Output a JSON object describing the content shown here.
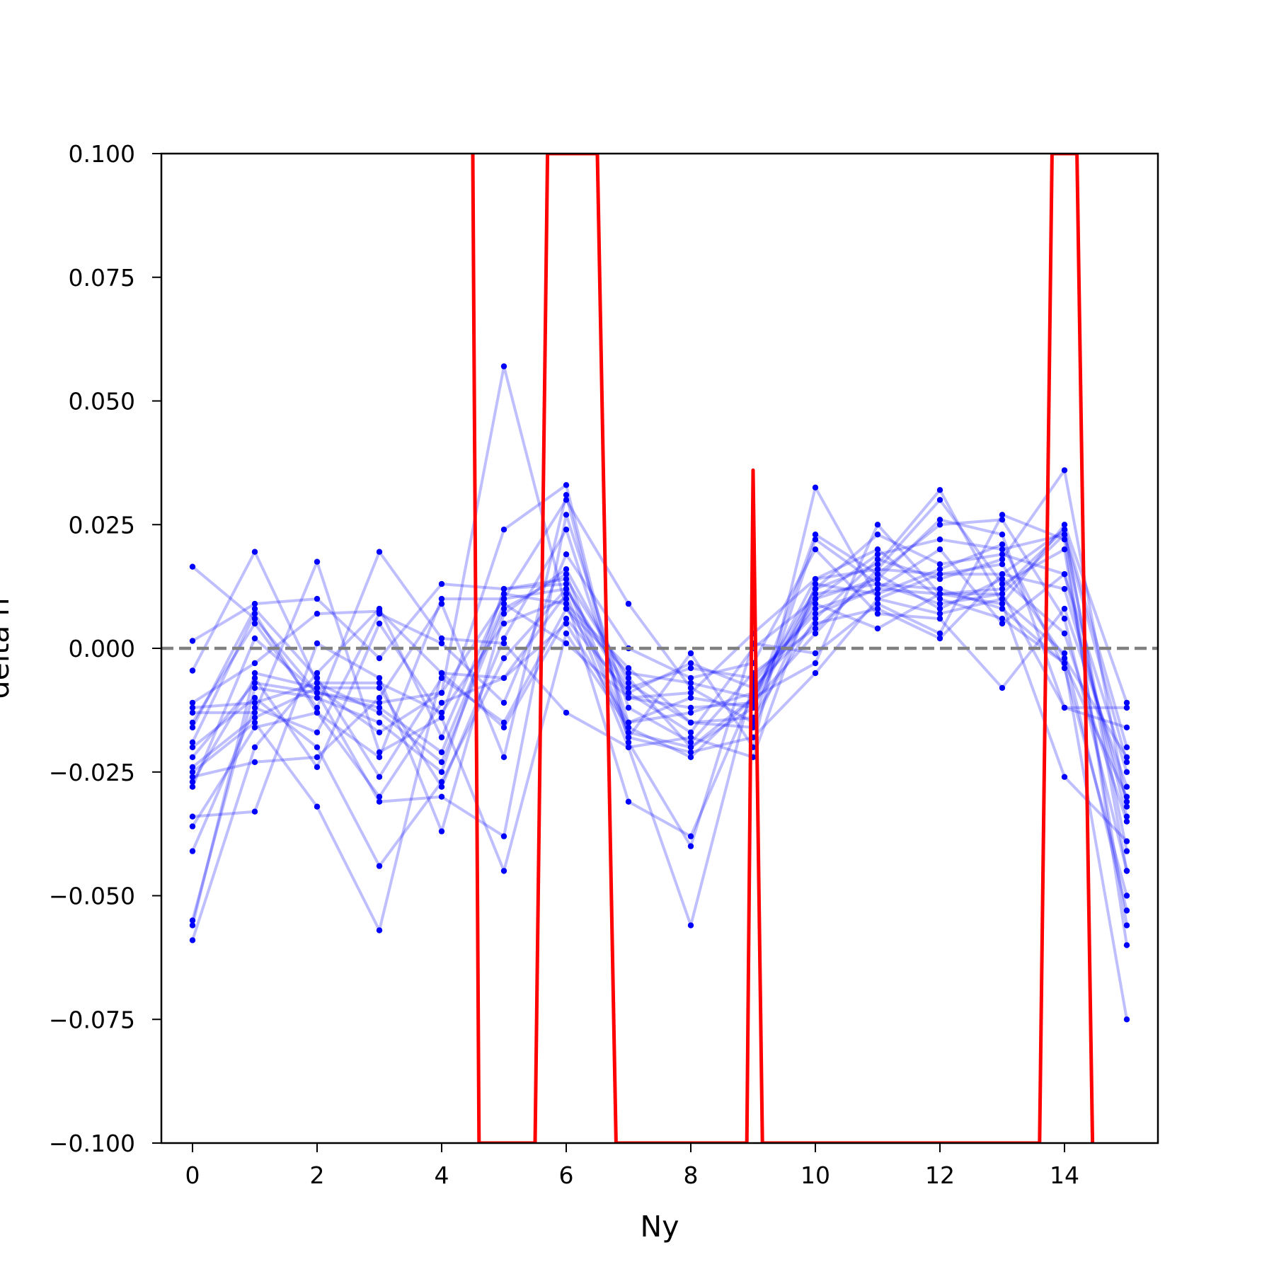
{
  "chart_data": {
    "type": "line",
    "title": "",
    "xlabel": "Ny",
    "ylabel": "delta n",
    "xlim": [
      -0.5,
      15.5
    ],
    "ylim": [
      -0.1,
      0.1
    ],
    "xticks": [
      0,
      2,
      4,
      6,
      8,
      10,
      12,
      14
    ],
    "xtick_labels": [
      "0",
      "2",
      "4",
      "6",
      "8",
      "10",
      "12",
      "14"
    ],
    "yticks": [
      -0.1,
      -0.075,
      -0.05,
      -0.025,
      0.0,
      0.025,
      0.05,
      0.075,
      0.1
    ],
    "ytick_labels": [
      "−0.100",
      "−0.075",
      "−0.050",
      "−0.025",
      "0.000",
      "0.025",
      "0.050",
      "0.075",
      "0.100"
    ],
    "grid": false,
    "reference_line": {
      "y": 0.0,
      "style": "dashed",
      "color": "#808080"
    },
    "colors": {
      "series": "#0000ff",
      "mean": "#ff0000",
      "reference": "#808080"
    },
    "x": [
      0,
      1,
      2,
      3,
      4,
      5,
      6,
      7,
      8,
      9,
      10,
      11,
      12,
      13,
      14,
      15
    ],
    "series": [
      {
        "values": [
          0.0165,
          0.006,
          -0.009,
          -0.011,
          -0.009,
          0.01,
          0.03,
          0.009,
          -0.008,
          -0.015,
          0.022,
          0.013,
          0.009,
          0.011,
          0.023,
          -0.023
        ]
      },
      {
        "values": [
          0.0015,
          0.009,
          0.01,
          -0.002,
          0.013,
          0.012,
          0.014,
          -0.006,
          -0.02,
          -0.01,
          0.014,
          0.02,
          0.01,
          0.006,
          -0.003,
          -0.03
        ]
      },
      {
        "values": [
          -0.0045,
          0.0195,
          -0.007,
          -0.007,
          -0.013,
          0.005,
          0.01,
          -0.031,
          -0.038,
          -0.009,
          0.012,
          0.017,
          0.032,
          0.009,
          0.025,
          -0.011
        ]
      },
      {
        "values": [
          -0.011,
          -0.003,
          0.007,
          0.0075,
          -0.005,
          -0.006,
          0.005,
          -0.015,
          -0.01,
          -0.012,
          0.023,
          0.015,
          0.025,
          0.026,
          0.006,
          -0.045
        ]
      },
      {
        "values": [
          -0.013,
          -0.013,
          0.0175,
          -0.021,
          -0.014,
          0.024,
          0.033,
          -0.018,
          -0.001,
          -0.02,
          0.0325,
          0.01,
          0.015,
          0.017,
          -0.002,
          -0.022
        ]
      },
      {
        "values": [
          -0.015,
          0.005,
          -0.012,
          0.0195,
          0.002,
          0.001,
          -0.013,
          -0.02,
          -0.056,
          -0.007,
          0.008,
          0.012,
          0.02,
          0.005,
          0.015,
          -0.025
        ]
      },
      {
        "values": [
          -0.016,
          0.008,
          -0.006,
          -0.026,
          -0.006,
          -0.015,
          0.008,
          -0.005,
          -0.007,
          -0.01,
          -0.003,
          0.025,
          0.011,
          0.011,
          -0.012,
          -0.016
        ]
      },
      {
        "values": [
          -0.02,
          -0.01,
          -0.02,
          -0.044,
          -0.027,
          -0.002,
          0.012,
          -0.009,
          -0.017,
          0.0,
          0.01,
          0.014,
          0.026,
          0.023,
          -0.012,
          -0.012
        ]
      },
      {
        "values": [
          -0.022,
          -0.007,
          -0.009,
          -0.031,
          -0.03,
          -0.038,
          0.027,
          -0.012,
          -0.019,
          -0.005,
          0.004,
          0.015,
          0.008,
          0.014,
          0.003,
          -0.035
        ]
      },
      {
        "values": [
          -0.025,
          -0.015,
          -0.032,
          -0.057,
          -0.005,
          -0.016,
          0.006,
          -0.009,
          -0.003,
          -0.008,
          0.005,
          0.008,
          0.002,
          0.015,
          0.012,
          -0.031
        ]
      },
      {
        "values": [
          -0.026,
          -0.023,
          -0.022,
          -0.01,
          0.009,
          -0.022,
          0.031,
          -0.019,
          -0.04,
          0.001,
          -0.001,
          0.009,
          0.003,
          0.027,
          0.022,
          -0.06
        ]
      },
      {
        "values": [
          -0.027,
          -0.006,
          -0.024,
          0.005,
          -0.014,
          -0.045,
          0.003,
          -0.016,
          -0.022,
          -0.01,
          0.009,
          0.004,
          0.011,
          0.009,
          -0.026,
          -0.039
        ]
      },
      {
        "values": [
          -0.028,
          0.002,
          -0.009,
          -0.012,
          -0.021,
          0.009,
          0.001,
          -0.01,
          -0.009,
          0.003,
          0.014,
          0.016,
          0.03,
          0.013,
          0.02,
          -0.056
        ]
      },
      {
        "values": [
          -0.034,
          -0.033,
          0.001,
          -0.006,
          -0.037,
          0.007,
          0.016,
          -0.007,
          -0.015,
          -0.014,
          0.006,
          0.018,
          0.014,
          0.018,
          0.036,
          -0.032
        ]
      },
      {
        "values": [
          -0.036,
          -0.016,
          -0.013,
          -0.03,
          -0.011,
          -0.006,
          0.011,
          -0.02,
          -0.018,
          -0.022,
          0.013,
          0.011,
          0.016,
          0.021,
          -0.004,
          -0.05
        ]
      },
      {
        "values": [
          -0.041,
          -0.012,
          -0.017,
          0.007,
          0.001,
          -0.011,
          0.019,
          0.0,
          -0.006,
          -0.003,
          0.02,
          0.007,
          0.006,
          -0.008,
          0.008,
          -0.028
        ]
      },
      {
        "values": [
          -0.055,
          -0.008,
          -0.01,
          -0.015,
          -0.025,
          0.012,
          0.013,
          -0.018,
          -0.021,
          -0.018,
          -0.005,
          0.01,
          0.007,
          0.01,
          -0.001,
          -0.053
        ]
      },
      {
        "values": [
          -0.056,
          -0.005,
          -0.008,
          -0.008,
          -0.028,
          0.002,
          0.024,
          -0.015,
          -0.013,
          -0.009,
          0.01,
          0.019,
          0.022,
          0.02,
          0.023,
          -0.041
        ]
      },
      {
        "values": [
          -0.059,
          -0.02,
          -0.005,
          0.008,
          -0.018,
          0.011,
          0.009,
          -0.004,
          -0.015,
          -0.016,
          0.011,
          0.013,
          0.012,
          0.008,
          -0.003,
          -0.075
        ]
      },
      {
        "values": [
          -0.012,
          -0.011,
          -0.007,
          -0.013,
          -0.023,
          0.008,
          0.015,
          -0.017,
          -0.02,
          -0.012,
          0.012,
          0.023,
          0.017,
          0.019,
          0.015,
          -0.034
        ]
      },
      {
        "values": [
          -0.019,
          0.007,
          -0.013,
          -0.022,
          0.01,
          0.01,
          0.012,
          -0.008,
          -0.004,
          -0.006,
          0.007,
          0.012,
          0.011,
          0.012,
          0.024,
          -0.045
        ]
      },
      {
        "values": [
          -0.024,
          -0.014,
          -0.008,
          -0.017,
          -0.009,
          0.057,
          0.008,
          -0.01,
          -0.012,
          -0.011,
          0.003,
          0.016,
          0.015,
          0.015,
          0.024,
          -0.02
        ]
      }
    ],
    "mean_series": {
      "x": [
        4.5,
        4.6,
        5.5,
        5.7,
        6.5,
        6.8,
        8.9,
        9.0,
        9.15,
        13.6,
        13.8,
        14.2,
        14.45
      ],
      "values": [
        0.1,
        -0.1,
        -0.1,
        0.1,
        0.1,
        -0.1,
        -0.1,
        0.036,
        -0.1,
        -0.1,
        0.1,
        0.1,
        -0.1
      ]
    }
  }
}
